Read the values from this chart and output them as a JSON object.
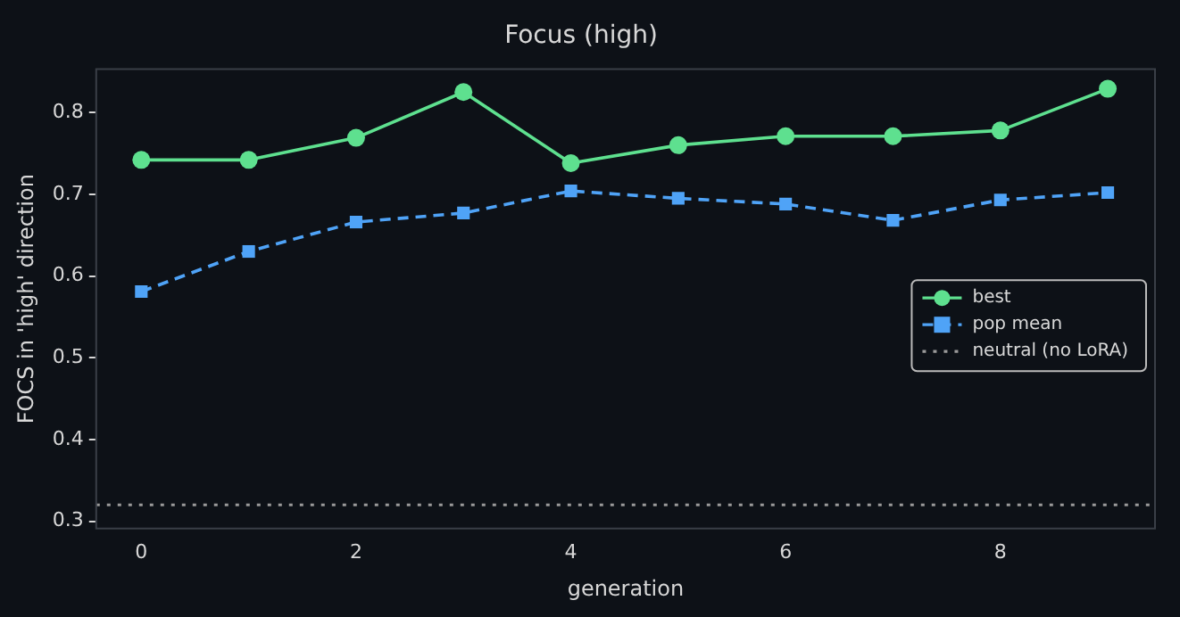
{
  "chart_data": {
    "type": "line",
    "title": "Focus (high)",
    "xlabel": "generation",
    "ylabel": "FOCS in 'high' direction",
    "x": [
      0,
      1,
      2,
      3,
      4,
      5,
      6,
      7,
      8,
      9
    ],
    "series": [
      {
        "name": "best",
        "color": "#5ee08f",
        "values": [
          0.742,
          0.742,
          0.769,
          0.825,
          0.738,
          0.76,
          0.771,
          0.771,
          0.778,
          0.829
        ],
        "marker": "circle",
        "line_style": "solid"
      },
      {
        "name": "pop mean",
        "color": "#4fa3f7",
        "values": [
          0.581,
          0.63,
          0.666,
          0.677,
          0.704,
          0.695,
          0.688,
          0.668,
          0.693,
          0.702
        ],
        "marker": "square",
        "line_style": "dashed"
      }
    ],
    "ref_lines": [
      {
        "axis": "y",
        "value": 0.32,
        "label": "neutral (no LoRA)",
        "color": "#9a9a9a",
        "line_style": "dotted"
      }
    ],
    "xlim": [
      -0.42,
      9.44
    ],
    "xticks": [
      0,
      2,
      4,
      6,
      8
    ],
    "ylim": [
      0.291,
      0.853
    ],
    "yticks": [
      0.3,
      0.4,
      0.5,
      0.6,
      0.7,
      0.8
    ],
    "grid": false,
    "legend": "right"
  }
}
